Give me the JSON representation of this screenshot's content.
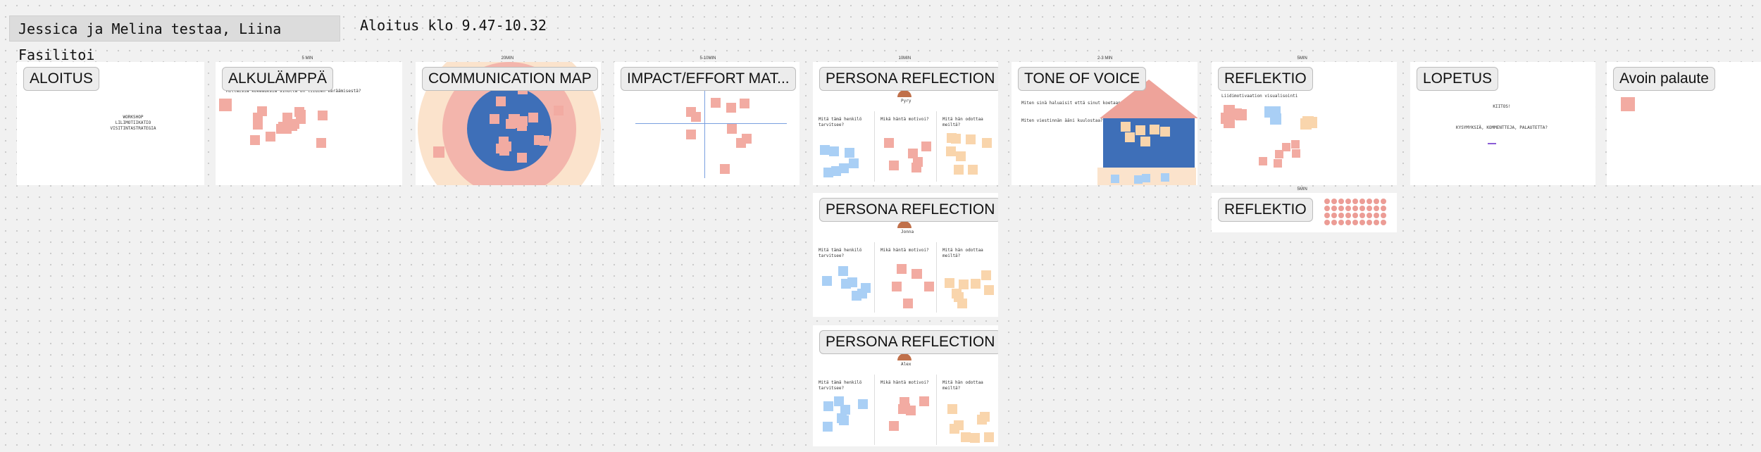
{
  "header": {
    "title": "Jessica ja Melina testaa, Liina Fasilitoi",
    "time": "Aloitus klo 9.47-10.32"
  },
  "frames": [
    {
      "label": "ALOITUS",
      "texts": [
        "WORKSHOP",
        "LILIMOTIIKATIO",
        "VISITINTASTRATEGIA"
      ]
    },
    {
      "label": "ALKULÄMPPÄ",
      "duration": "5 MIN",
      "texts": [
        "Millaisia kokemuksia sinulla on liidien keräämisestä?"
      ]
    },
    {
      "label": "COMMUNICATION MAP",
      "duration": "20MIN",
      "texts": []
    },
    {
      "label": "IMPACT/EFFORT MAT...",
      "duration": "5-10MIN",
      "texts": []
    },
    {
      "label": "PERSONA REFLECTION",
      "duration": "10MIN",
      "persona": "Pyry",
      "texts": [
        "Mitä tämä henkilö tarvitsee?",
        "Mikä häntä motivoi?",
        "Mitä hän odottaa meiltä?"
      ]
    },
    {
      "label": "TONE OF VOICE",
      "duration": "2-3 MIN",
      "texts": [
        "Miten sinä haluaisit että sinut koetaan?",
        "Miten viestinnän ääni kuulostaa?"
      ]
    },
    {
      "label": "REFLEKTIO",
      "duration": "5MIN",
      "texts": [
        "Liidimotivaation visualisointi"
      ]
    },
    {
      "label": "LOPETUS",
      "texts": [
        "KIITOS!",
        "KYSYMYKSIÄ, KOMMENTTEJA, PALAUTETTA?"
      ]
    },
    {
      "label": "Avoin palaute",
      "texts": []
    },
    {
      "label": "PERSONA REFLECTION",
      "persona": "Jonna",
      "texts": [
        "Mitä tämä henkilö tarvitsee?",
        "Mikä häntä motivoi?",
        "Mitä hän odottaa meiltä?"
      ]
    },
    {
      "label": "REFLEKTIO",
      "duration": "5MIN",
      "texts": []
    },
    {
      "label": "PERSONA REFLECTION",
      "persona": "Alex",
      "texts": [
        "Mitä tämä henkilö tarvitsee?",
        "Mikä häntä motivoi?",
        "Mitä hän odottaa meiltä?"
      ]
    }
  ]
}
